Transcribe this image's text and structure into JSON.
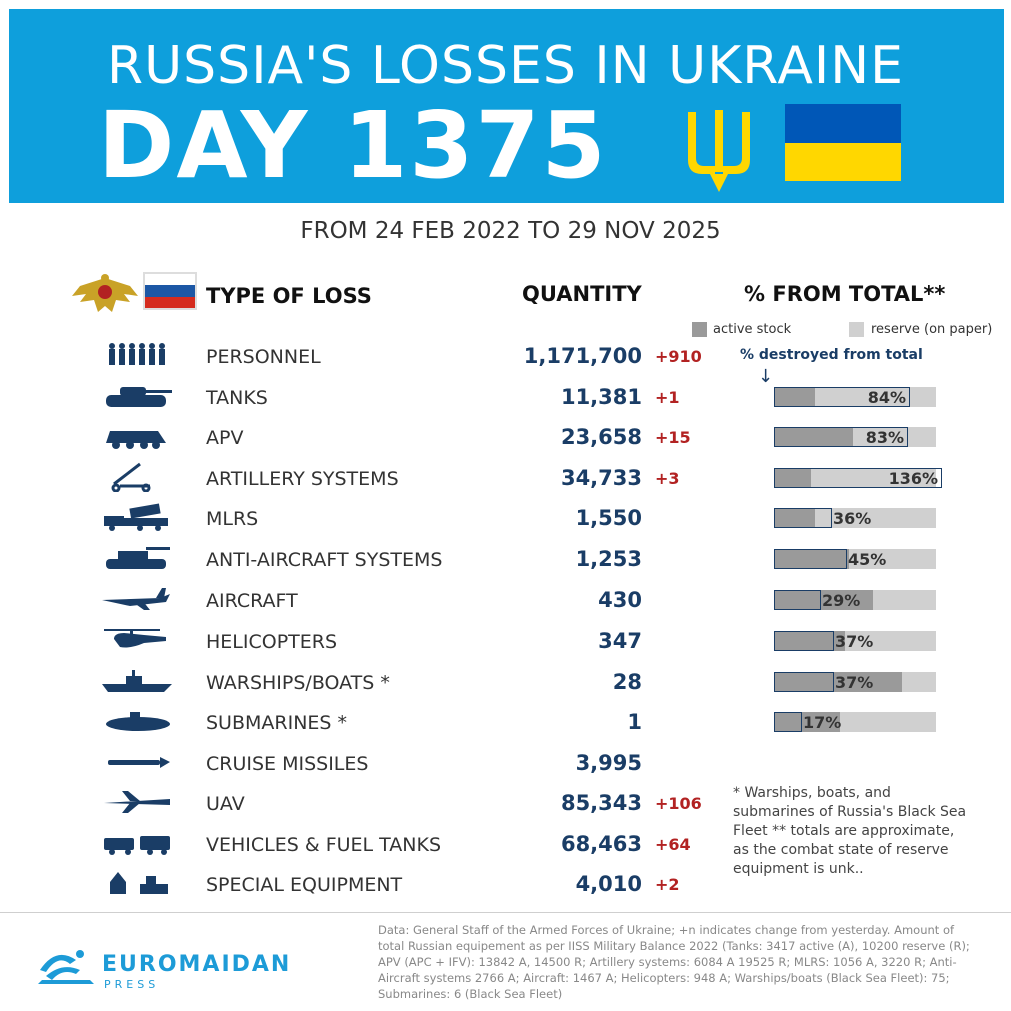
{
  "header": {
    "title": "RUSSIA'S LOSSES IN UKRAINE",
    "day": "DAY 1375",
    "date_range": "FROM 24 FEB 2022 TO 29 NOV 2025"
  },
  "columns": {
    "type": "TYPE OF LOSS",
    "quantity": "QUANTITY",
    "percent": "% FROM TOTAL**"
  },
  "legend": {
    "active": "active stock",
    "reserve": "reserve (on paper)",
    "destroyed": "% destroyed from total",
    "arrow": "↓"
  },
  "colors": {
    "banner": "#0e9fdc",
    "quantity": "#1a3d66",
    "delta": "#b22222",
    "active_stock": "#9a9a9a",
    "reserve": "#d0d0d0",
    "flag_blue": "#0057b7",
    "flag_yellow": "#ffd700"
  },
  "rows": [
    {
      "name": "PERSONNEL",
      "qty": "1,171,700",
      "delta": "+910",
      "icon": "soldiers-icon"
    },
    {
      "name": "TANKS",
      "qty": "11,381",
      "delta": "+1",
      "icon": "tank-icon"
    },
    {
      "name": "APV",
      "qty": "23,658",
      "delta": "+15",
      "icon": "apc-icon"
    },
    {
      "name": "ARTILLERY SYSTEMS",
      "qty": "34,733",
      "delta": "+3",
      "icon": "artillery-icon"
    },
    {
      "name": "MLRS",
      "qty": "1,550",
      "delta": "",
      "icon": "mlrs-icon"
    },
    {
      "name": "ANTI-AIRCRAFT SYSTEMS",
      "qty": "1,253",
      "delta": "",
      "icon": "anti-aircraft-icon"
    },
    {
      "name": "AIRCRAFT",
      "qty": "430",
      "delta": "",
      "icon": "jet-icon"
    },
    {
      "name": "HELICOPTERS",
      "qty": "347",
      "delta": "",
      "icon": "helicopter-icon"
    },
    {
      "name": "WARSHIPS/BOATS *",
      "qty": "28",
      "delta": "",
      "icon": "warship-icon"
    },
    {
      "name": "SUBMARINES *",
      "qty": "1",
      "delta": "",
      "icon": "submarine-icon"
    },
    {
      "name": "CRUISE MISSILES",
      "qty": "3,995",
      "delta": "",
      "icon": "missile-icon"
    },
    {
      "name": "UAV",
      "qty": "85,343",
      "delta": "+106",
      "icon": "drone-icon"
    },
    {
      "name": "VEHICLES & FUEL TANKS",
      "qty": "68,463",
      "delta": "+64",
      "icon": "truck-icon"
    },
    {
      "name": "SPECIAL EQUIPMENT",
      "qty": "4,010",
      "delta": "+2",
      "icon": "special-equipment-icon"
    }
  ],
  "chart_data": {
    "type": "bar",
    "categories": [
      "TANKS",
      "APV",
      "ARTILLERY SYSTEMS",
      "MLRS",
      "ANTI-AIRCRAFT SYSTEMS",
      "AIRCRAFT",
      "HELICOPTERS",
      "WARSHIPS/BOATS *",
      "SUBMARINES *"
    ],
    "percent_destroyed": [
      84,
      83,
      136,
      36,
      45,
      29,
      37,
      37,
      17
    ],
    "labels": [
      "84%",
      "83%",
      "136%",
      "36%",
      "45%",
      "29%",
      "37%",
      "37%",
      "17%"
    ],
    "active_share": [
      0.25,
      0.49,
      0.23,
      0.25,
      0.46,
      0.61,
      0.44,
      0.79,
      0.41
    ],
    "series": [
      {
        "name": "active stock",
        "color": "#9a9a9a"
      },
      {
        "name": "reserve (on paper)",
        "color": "#d0d0d0"
      }
    ],
    "xlim": [
      0,
      100
    ]
  },
  "footnote": "* Warships, boats, and submarines of Russia's Black Sea Fleet ** totals are approximate, as the combat state of reserve equipment is unk..",
  "brand": {
    "name": "EUROMAIDAN",
    "sub": "PRESS"
  },
  "source": "Data: General Staff of the Armed Forces of Ukraine; +n indicates change from yesterday. Amount of total Russian equipement as per IISS Military Balance 2022 (Tanks: 3417 active (A), 10200 reserve (R); APV (APC + IFV): 13842 A, 14500 R; Artillery systems: 6084 A 19525 R; MLRS: 1056 A, 3220 R; Anti-Aircraft systems 2766 A; Aircraft: 1467 A; Helicopters: 948 A; Warships/boats (Black Sea Fleet): 75; Submarines: 6 (Black Sea Fleet)"
}
